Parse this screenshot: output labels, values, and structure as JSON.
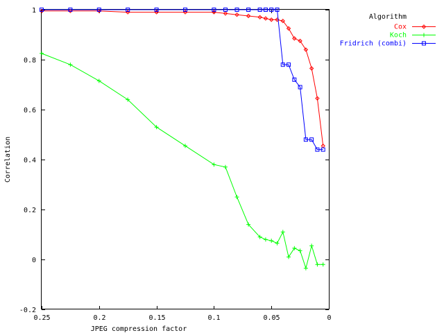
{
  "chart_data": {
    "type": "line",
    "title": "",
    "xlabel": "JPEG compression factor",
    "ylabel": "Correlation",
    "xlim": [
      0.25,
      0.0
    ],
    "ylim": [
      -0.2,
      1.0
    ],
    "x_ticks": [
      {
        "value": 0.25,
        "label": "0.25"
      },
      {
        "value": 0.2,
        "label": "0.2"
      },
      {
        "value": 0.15,
        "label": "0.15"
      },
      {
        "value": 0.1,
        "label": "0.1"
      },
      {
        "value": 0.05,
        "label": "0.05"
      },
      {
        "value": 0.0,
        "label": "0"
      }
    ],
    "y_ticks": [
      {
        "value": 1.0,
        "label": "1"
      },
      {
        "value": 0.8,
        "label": "0.8"
      },
      {
        "value": 0.6,
        "label": "0.6"
      },
      {
        "value": 0.4,
        "label": "0.4"
      },
      {
        "value": 0.2,
        "label": "0.2"
      },
      {
        "value": 0.0,
        "label": "0"
      },
      {
        "value": -0.2,
        "label": "-0.2"
      }
    ],
    "grid": false,
    "legend": {
      "title": "Algorithm",
      "placement": "top-right outside"
    },
    "series": [
      {
        "name": "Cox",
        "color": "#ff0000",
        "marker": "diamond",
        "x": [
          0.25,
          0.225,
          0.2,
          0.175,
          0.15,
          0.125,
          0.1,
          0.09,
          0.08,
          0.07,
          0.06,
          0.055,
          0.05,
          0.045,
          0.04,
          0.035,
          0.03,
          0.025,
          0.02,
          0.015,
          0.01,
          0.005
        ],
        "y": [
          0.995,
          0.995,
          0.995,
          0.99,
          0.99,
          0.99,
          0.99,
          0.985,
          0.98,
          0.975,
          0.97,
          0.965,
          0.96,
          0.96,
          0.955,
          0.925,
          0.885,
          0.875,
          0.84,
          0.765,
          0.645,
          0.455
        ]
      },
      {
        "name": "Koch",
        "color": "#00ff00",
        "marker": "plus",
        "x": [
          0.25,
          0.225,
          0.2,
          0.175,
          0.15,
          0.125,
          0.1,
          0.09,
          0.08,
          0.07,
          0.06,
          0.055,
          0.05,
          0.045,
          0.04,
          0.035,
          0.03,
          0.025,
          0.02,
          0.015,
          0.01,
          0.005
        ],
        "y": [
          0.825,
          0.78,
          0.715,
          0.64,
          0.53,
          0.455,
          0.38,
          0.37,
          0.25,
          0.14,
          0.09,
          0.08,
          0.075,
          0.065,
          0.11,
          0.01,
          0.045,
          0.035,
          -0.035,
          0.055,
          -0.02,
          -0.02
        ]
      },
      {
        "name": "Fridrich (combi)",
        "color": "#0000ff",
        "marker": "square",
        "x": [
          0.25,
          0.225,
          0.2,
          0.175,
          0.15,
          0.125,
          0.1,
          0.09,
          0.08,
          0.07,
          0.06,
          0.055,
          0.05,
          0.045,
          0.04,
          0.035,
          0.03,
          0.025,
          0.02,
          0.015,
          0.01,
          0.005
        ],
        "y": [
          1.0,
          1.0,
          1.0,
          1.0,
          1.0,
          1.0,
          1.0,
          1.0,
          1.0,
          1.0,
          1.0,
          1.0,
          1.0,
          1.0,
          0.78,
          0.78,
          0.72,
          0.69,
          0.48,
          0.48,
          0.44,
          0.44
        ]
      }
    ]
  }
}
